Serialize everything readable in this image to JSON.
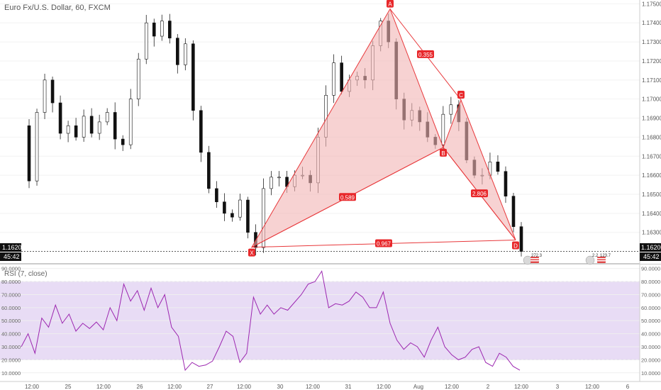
{
  "symbol_title": "Euro Fx/U.S. Dollar, 60, FXCM",
  "current_price_label": "1.16200",
  "countdown_label": "45:42",
  "rsi_title": "RSI (7, close)",
  "event_badges": [
    "272.3",
    "2.2",
    "123.7"
  ],
  "chart_data": [
    {
      "type": "candlestick",
      "title": "Euro Fx/U.S. Dollar, 60, FXCM",
      "ylim": [
        1.1615,
        1.1752
      ],
      "yticks": [
        "1.16300",
        "1.16400",
        "1.16500",
        "1.16600",
        "1.16700",
        "1.16800",
        "1.16900",
        "1.17000",
        "1.17100",
        "1.17200",
        "1.17300",
        "1.17400",
        "1.17500"
      ],
      "xticks": [
        "12:00",
        "25",
        "12:00",
        "26",
        "12:00",
        "27",
        "12:00",
        "30",
        "12:00",
        "31",
        "12:00",
        "Aug",
        "12:00",
        "2",
        "12:00",
        "3",
        "12:00",
        "6"
      ],
      "close_path": [
        1.1686,
        1.1657,
        1.1693,
        1.171,
        1.1698,
        1.1682,
        1.1686,
        1.168,
        1.1691,
        1.1682,
        1.1688,
        1.1693,
        1.1679,
        1.1676,
        1.17,
        1.1721,
        1.174,
        1.1733,
        1.1741,
        1.1732,
        1.1718,
        1.1729,
        1.1694,
        1.1672,
        1.1653,
        1.1646,
        1.164,
        1.1638,
        1.1647,
        1.163,
        1.1622,
        1.1653,
        1.1659,
        1.1659,
        1.1654,
        1.166,
        1.166,
        1.1656,
        1.168,
        1.1702,
        1.1719,
        1.1704,
        1.171,
        1.1712,
        1.171,
        1.1728,
        1.1741,
        1.173,
        1.17,
        1.1689,
        1.1694,
        1.1688,
        1.168,
        1.1676,
        1.1692,
        1.1697,
        1.1688,
        1.1668,
        1.166,
        1.166,
        1.1667,
        1.1662,
        1.1649,
        1.1633,
        1.162
      ],
      "current_price": 1.162,
      "pattern": {
        "name": "harmonic",
        "points": [
          {
            "label": "X",
            "price": 1.16222
          },
          {
            "label": "A",
            "price": 1.17473
          },
          {
            "label": "B",
            "price": 1.16746
          },
          {
            "label": "C",
            "price": 1.16995
          },
          {
            "label": "D",
            "price": 1.1626
          }
        ],
        "ratios": [
          "0.589",
          "0.355",
          "2.806",
          "0.967"
        ],
        "colors": {
          "line": "#e8383b",
          "fill": "#f2b4b4",
          "label_bg": "#e8282b"
        }
      }
    },
    {
      "type": "line",
      "title": "RSI (7, close)",
      "ylim": [
        5,
        92
      ],
      "yticks": [
        "10.0000",
        "20.0000",
        "30.0000",
        "40.0000",
        "50.0000",
        "60.0000",
        "70.0000",
        "80.0000",
        "90.0000"
      ],
      "band": [
        20,
        80
      ],
      "values": [
        30,
        40,
        25,
        52,
        45,
        62,
        48,
        55,
        42,
        48,
        44,
        49,
        43,
        60,
        50,
        78,
        65,
        73,
        58,
        75,
        60,
        70,
        45,
        38,
        12,
        18,
        15,
        16,
        19,
        30,
        42,
        38,
        18,
        25,
        68,
        55,
        62,
        55,
        60,
        58,
        64,
        70,
        78,
        80,
        88,
        60,
        63,
        62,
        65,
        72,
        68,
        60,
        60,
        72,
        48,
        35,
        28,
        33,
        30,
        22,
        35,
        45,
        30,
        24,
        20,
        22,
        28,
        30,
        18,
        15,
        25,
        22,
        15,
        12
      ],
      "colors": {
        "line": "#9c27b0",
        "band": "#e8dcf5"
      }
    }
  ]
}
